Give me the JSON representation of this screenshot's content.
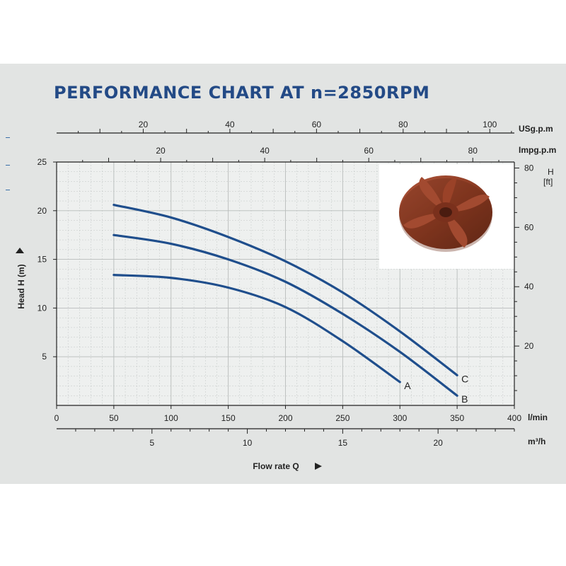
{
  "title": "PERFORMANCE CHART AT n=2850RPM",
  "axes": {
    "head_label": "Head H (m)",
    "flow_label": "Flow rate Q",
    "lmin_unit": "l/min",
    "m3h_unit": "m³/h",
    "usgpm_unit": "USg.p.m",
    "impgpm_unit": "Impg.p.m",
    "ft_unit_top": "H",
    "ft_unit_bottom": "[ft]"
  },
  "image": {
    "name": "impeller-photo",
    "color": "#8a3a22"
  },
  "colors": {
    "curve": "#1f4e8c",
    "title": "#234a86",
    "background": "#e2e4e3",
    "grid": "#b8bcbb"
  },
  "chart_data": {
    "type": "line",
    "title": "PERFORMANCE CHART AT n=2850RPM",
    "xlabel": "Flow rate Q",
    "ylabel": "Head H (m)",
    "grid": true,
    "xlim": [
      0,
      400
    ],
    "ylim": [
      0,
      25
    ],
    "x_unit": "l/min",
    "x_ticks": [
      0,
      50,
      100,
      150,
      200,
      250,
      300,
      350,
      400
    ],
    "y_ticks": [
      5,
      10,
      15,
      20,
      25
    ],
    "secondary_axes": {
      "m3h_ticks": [
        5,
        10,
        15,
        20
      ],
      "usgpm_ticks": [
        20,
        40,
        60,
        80,
        100
      ],
      "impgpm_ticks": [
        20,
        40,
        60,
        80
      ],
      "ft_ticks": [
        20,
        40,
        60,
        80
      ]
    },
    "series": [
      {
        "name": "A",
        "x": [
          50,
          100,
          150,
          200,
          250,
          300
        ],
        "y": [
          13.4,
          13.1,
          12.1,
          10.1,
          6.6,
          2.4
        ]
      },
      {
        "name": "B",
        "x": [
          50,
          100,
          150,
          200,
          250,
          300,
          350
        ],
        "y": [
          17.5,
          16.6,
          15.0,
          12.7,
          9.4,
          5.5,
          1.0
        ]
      },
      {
        "name": "C",
        "x": [
          50,
          100,
          150,
          200,
          250,
          300,
          350
        ],
        "y": [
          20.6,
          19.3,
          17.3,
          14.8,
          11.6,
          7.6,
          3.1
        ]
      }
    ]
  }
}
